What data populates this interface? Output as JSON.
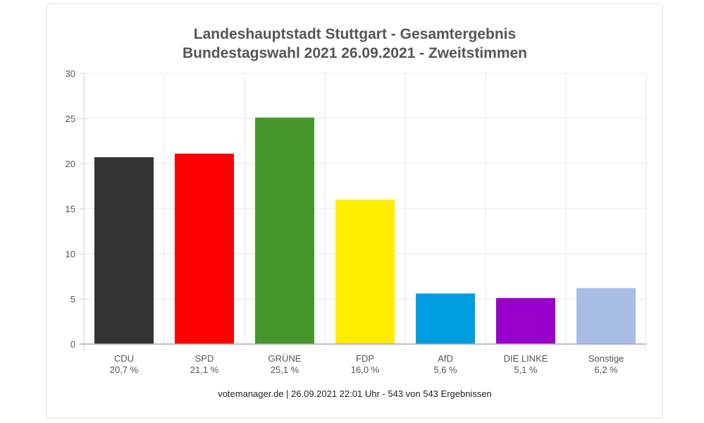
{
  "chart_data": {
    "type": "bar",
    "title": "Landeshauptstadt Stuttgart - Gesamtergebnis",
    "subtitle": "Bundestagswahl 2021 26.09.2021  - Zweitstimmen",
    "categories": [
      "CDU",
      "SPD",
      "GRÜNE",
      "FDP",
      "AfD",
      "DIE LINKE",
      "Sonstige"
    ],
    "values": [
      20.7,
      21.1,
      25.1,
      16.0,
      5.6,
      5.1,
      6.2
    ],
    "value_labels": [
      "20,7 %",
      "21,1 %",
      "25,1 %",
      "16,0 %",
      "5,6 %",
      "5,1 %",
      "6,2 %"
    ],
    "colors": [
      "#333333",
      "#ff0000",
      "#46962b",
      "#ffed00",
      "#009ee0",
      "#9900cc",
      "#a8bde6"
    ],
    "xlabel": "",
    "ylabel": "",
    "ylim": [
      0,
      30
    ],
    "yticks": [
      0,
      5,
      10,
      15,
      20,
      25,
      30
    ],
    "grid": true,
    "footer": "votemanager.de | 26.09.2021 22:01 Uhr - 543 von 543 Ergebnissen"
  }
}
